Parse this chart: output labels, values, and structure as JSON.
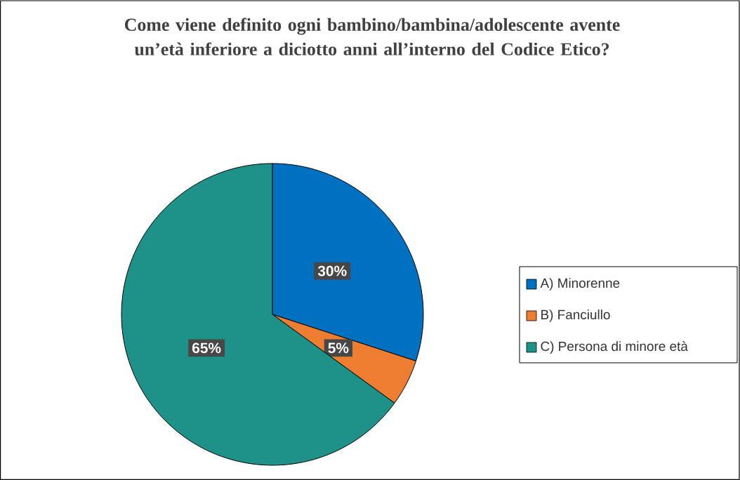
{
  "chart_data": {
    "type": "pie",
    "title": "Come viene definito ogni bambino/bambina/adolescente avente un’età inferiore a diciotto anni all’interno del Codice Etico?",
    "categories": [
      "A) Minorenne",
      "B) Fanciullo",
      "C) Persona di minore età"
    ],
    "values": [
      30,
      5,
      65
    ],
    "colors": [
      "#0070c0",
      "#ed7d31",
      "#1e9189"
    ],
    "value_labels": [
      "30%",
      "5%",
      "65%"
    ],
    "legend": "right"
  }
}
